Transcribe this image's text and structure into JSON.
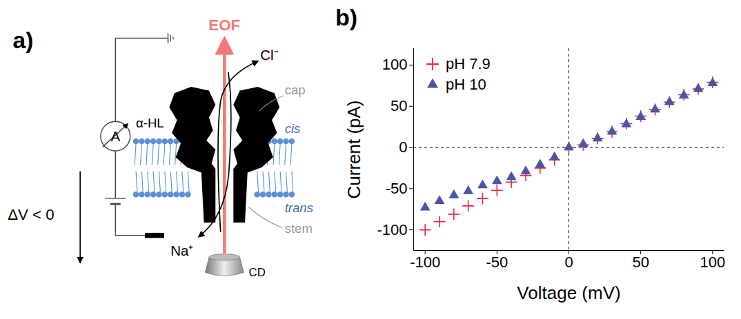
{
  "diagram": {
    "panel_label": "a)",
    "labels": {
      "eof": "EOF",
      "anion": "Cl⁻",
      "cation": "Na⁺",
      "pore": "α-HL",
      "cap": "cap",
      "stem": "stem",
      "cis": "cis",
      "trans": "trans",
      "cd": "CD",
      "ammeter": "A",
      "voltage": "ΔV < 0"
    }
  },
  "chart_data": {
    "type": "scatter",
    "panel_label": "b)",
    "x_label": "Voltage (mV)",
    "y_label": "Current (pA)",
    "x": [
      -100,
      -90,
      -80,
      -70,
      -60,
      -50,
      -40,
      -30,
      -20,
      -10,
      0,
      10,
      20,
      30,
      40,
      50,
      60,
      70,
      80,
      90,
      100
    ],
    "series": [
      {
        "name": "pH 7.9",
        "color": "#e8283c",
        "marker": "plus",
        "values": [
          -100,
          -90,
          -81,
          -71,
          -62,
          -52,
          -42,
          -34,
          -25,
          -15,
          0,
          3,
          11,
          19,
          29,
          38,
          46,
          55,
          64,
          71,
          79
        ]
      },
      {
        "name": "pH 10",
        "color": "#4b55a5",
        "marker": "triangle",
        "values": [
          -73,
          -65,
          -58,
          -53,
          -46,
          -41,
          -36,
          -29,
          -21,
          -12,
          0,
          4,
          11,
          19,
          28,
          37,
          46,
          55,
          63,
          71,
          78
        ]
      }
    ],
    "xlim": [
      -108,
      108
    ],
    "ylim": [
      -125,
      120
    ],
    "xticks": [
      -100,
      -50,
      0,
      50,
      100
    ],
    "yticks": [
      -100,
      -50,
      0,
      50,
      100
    ],
    "legend": "top-left"
  }
}
